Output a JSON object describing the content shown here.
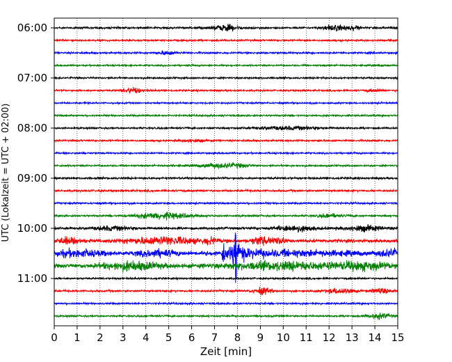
{
  "chart_data": {
    "type": "line",
    "title": "",
    "xlabel": "Zeit  [min]",
    "ylabel": "UTC (Lokalzeit = UTC + 02:00)",
    "xlim": [
      0,
      15
    ],
    "x_ticks": [
      "0",
      "1",
      "2",
      "3",
      "4",
      "5",
      "6",
      "7",
      "8",
      "9",
      "10",
      "11",
      "12",
      "13",
      "14",
      "15"
    ],
    "y_tick_labels": [
      "06:00",
      "07:00",
      "08:00",
      "09:00",
      "10:00",
      "11:00"
    ],
    "trace_interval_minutes": 15,
    "start_time": "06:00",
    "trace_count": 24,
    "color_cycle": [
      "#000000",
      "#ff0000",
      "#0000ff",
      "#008000"
    ],
    "grid": "vertical-dotted",
    "event": {
      "trace_time": "10:30",
      "onset_min": 7.3,
      "peak_min": 7.9
    }
  }
}
